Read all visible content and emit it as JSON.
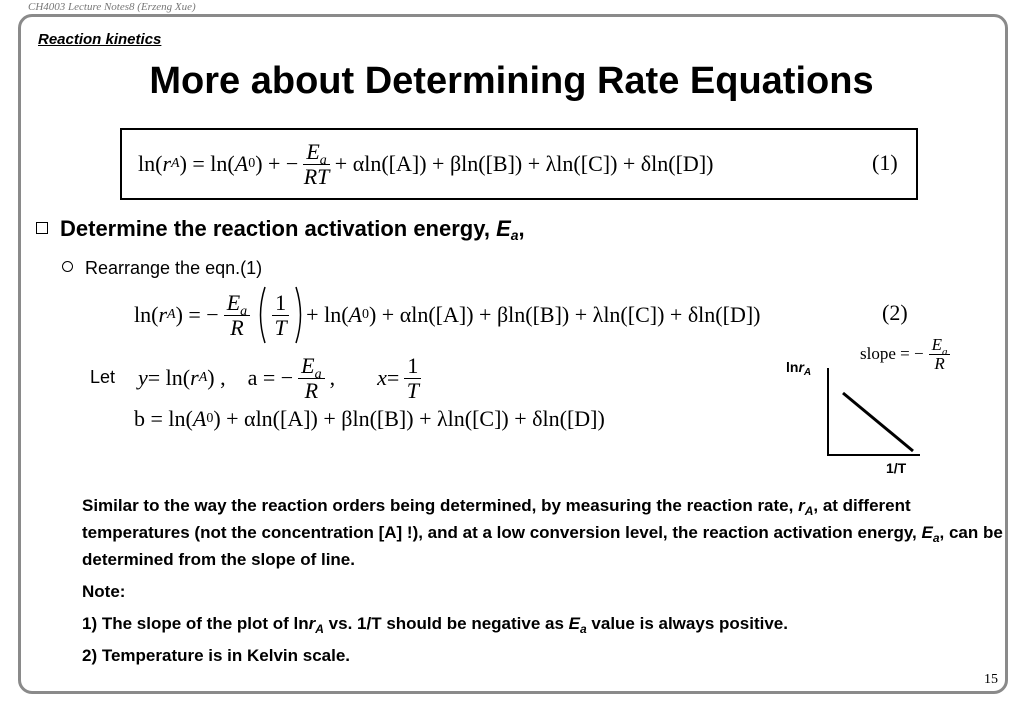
{
  "header": {
    "running_title": "CH4003 Lecture Notes8 (Erzeng Xue)",
    "section": "Reaction kinetics",
    "title": "More about Determining Rate Equations"
  },
  "equation_1": {
    "runs": [
      "ln(",
      "r",
      "A",
      ") = ln(",
      "A",
      "0",
      ") + −",
      "E",
      "a",
      "RT",
      "+ αln([A]) + βln([B]) + λln([C]) + δln([D])"
    ],
    "number": "(1)"
  },
  "bullet_1": [
    "Determine the reaction activation energy, ",
    "E",
    "a",
    ","
  ],
  "bullet_2": "Rearrange the eqn.(1)",
  "equation_2": {
    "runs": [
      "ln(",
      "r",
      "A",
      ") = −",
      "E",
      "a",
      "R",
      "1",
      "T",
      "+ ln(",
      "A",
      "0",
      ") + αln([A]) + βln([B]) + λln([C]) + δln([D])"
    ],
    "number": "(2)"
  },
  "let_line": {
    "lead": "Let",
    "runs": [
      "y",
      " = ln(",
      "r",
      "A",
      ") ,",
      "a = −",
      "E",
      "a",
      "R",
      ",",
      "x",
      " = ",
      "1",
      "T"
    ]
  },
  "b_line": [
    "b = ln(",
    "A",
    "0",
    ") + αln([A]) + βln([B]) + λln([C]) + δln([D])"
  ],
  "plot": {
    "y_label": [
      "ln",
      "r",
      "A"
    ],
    "x_label": "1/T",
    "slope": [
      "slope = −",
      "E",
      "a",
      "R"
    ]
  },
  "paragraph": [
    "Similar to the way the reaction orders being determined, by measuring the reaction rate, ",
    "r",
    "A",
    ", at different temperatures (not the concentration [A] !), and at a low conversion level, the reaction activation energy, ",
    "E",
    "a",
    ", can be determined from the slope of line."
  ],
  "notes": {
    "heading": "Note:",
    "items": [
      [
        "1) The slope of the plot of ln",
        "r",
        "A",
        " vs. 1/T should be negative as ",
        "E",
        "a",
        " value is always positive."
      ],
      [
        "2) Temperature is in Kelvin scale."
      ]
    ]
  },
  "page_number": "15"
}
